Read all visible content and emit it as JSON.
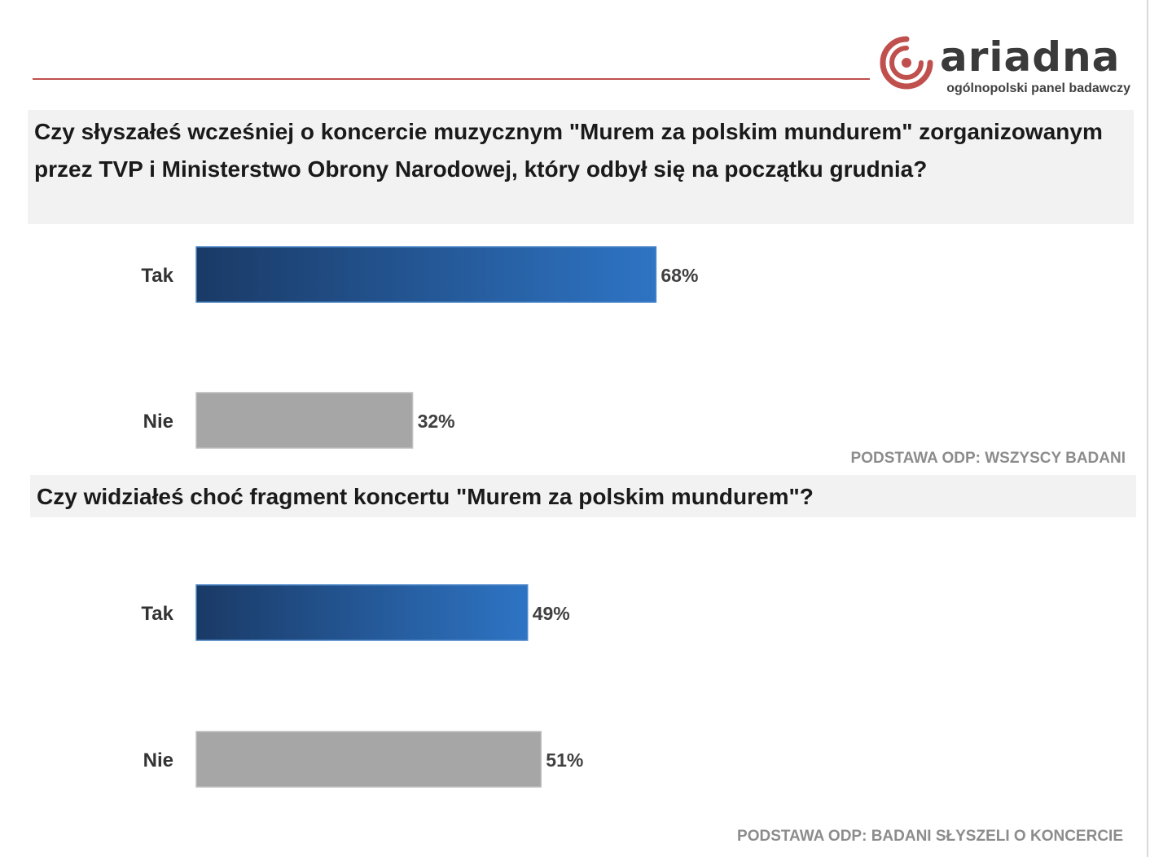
{
  "brand": {
    "name": "ariadna",
    "tagline": "ogólnopolski panel badawczy",
    "accent_color": "#c0504d",
    "logo_icon": "spiral-target-icon"
  },
  "colors": {
    "yes_gradient_start": "#1a3a66",
    "yes_gradient_end": "#2e74c4",
    "no_fill": "#a6a6a6",
    "question_bg": "#f2f2f2"
  },
  "section1": {
    "question": "Czy słyszałeś wcześniej o koncercie muzycznym \"Murem za polskim mundurem\" zorganizowanym przez TVP i Ministerstwo Obrony Narodowej, który odbył się na początku grudnia?",
    "base_note": "PODSTAWA ODP: WSZYSCY BADANI"
  },
  "section2": {
    "question": "Czy widziałeś choć fragment koncertu  \"Murem za polskim mundurem\"?",
    "base_note": "PODSTAWA ODP: BADANI SŁYSZELI O KONCERCIE"
  },
  "chart_data": [
    {
      "type": "bar",
      "orientation": "horizontal",
      "categories": [
        "Tak",
        "Nie"
      ],
      "values": [
        68,
        32
      ],
      "value_labels": [
        "68%",
        "32%"
      ],
      "unit": "%",
      "xlim": [
        0,
        100
      ],
      "grid": false
    },
    {
      "type": "bar",
      "orientation": "horizontal",
      "categories": [
        "Tak",
        "Nie"
      ],
      "values": [
        49,
        51
      ],
      "value_labels": [
        "49%",
        "51%"
      ],
      "unit": "%",
      "xlim": [
        0,
        100
      ],
      "grid": false
    }
  ]
}
